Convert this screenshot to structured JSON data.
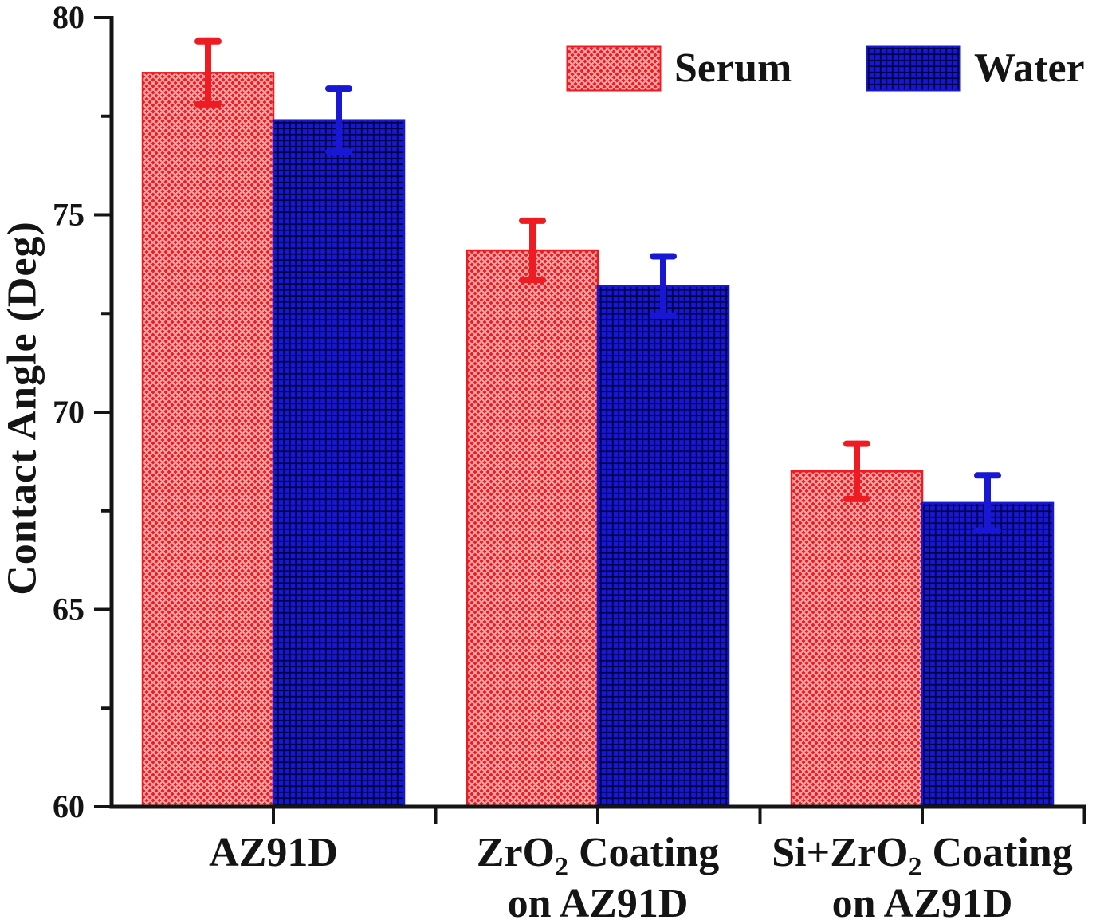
{
  "figure": {
    "ylabel": "Contact Angle (Deg)"
  },
  "chart_data": {
    "type": "bar",
    "title": "",
    "xlabel": "",
    "ylabel": "Contact Angle (Deg)",
    "ylim": [
      60,
      80
    ],
    "yticks_major": [
      60,
      65,
      70,
      75,
      80
    ],
    "yticks_minor": [
      62.5,
      67.5,
      72.5,
      77.5
    ],
    "grid": false,
    "legend_position": "top-center",
    "axis_color": "#141414",
    "categories": [
      "AZ91D",
      "ZrO2 Coating on AZ91D",
      "Si+ZrO2 Coating on AZ91D"
    ],
    "category_display": [
      {
        "lines": [
          [
            {
              "t": "AZ91D"
            }
          ]
        ]
      },
      {
        "lines": [
          [
            {
              "t": "ZrO"
            },
            {
              "t": "2",
              "sub": true
            },
            {
              "t": " Coating"
            }
          ],
          [
            {
              "t": "on AZ91D"
            }
          ]
        ]
      },
      {
        "lines": [
          [
            {
              "t": "Si+ZrO"
            },
            {
              "t": "2",
              "sub": true
            },
            {
              "t": " Coating"
            }
          ],
          [
            {
              "t": "on AZ91D"
            }
          ]
        ]
      }
    ],
    "series": [
      {
        "name": "Serum",
        "fill": "#ee1b22",
        "hatch": "#f6aaaa",
        "hatch_style": "diagonal-crosshatch",
        "values": [
          78.6,
          74.1,
          68.5
        ],
        "errors": [
          0.8,
          0.75,
          0.7
        ]
      },
      {
        "name": "Water",
        "fill": "#1818d4",
        "hatch": "#000045",
        "hatch_style": "grid",
        "values": [
          77.4,
          73.2,
          67.7
        ],
        "errors": [
          0.8,
          0.75,
          0.7
        ]
      }
    ]
  }
}
